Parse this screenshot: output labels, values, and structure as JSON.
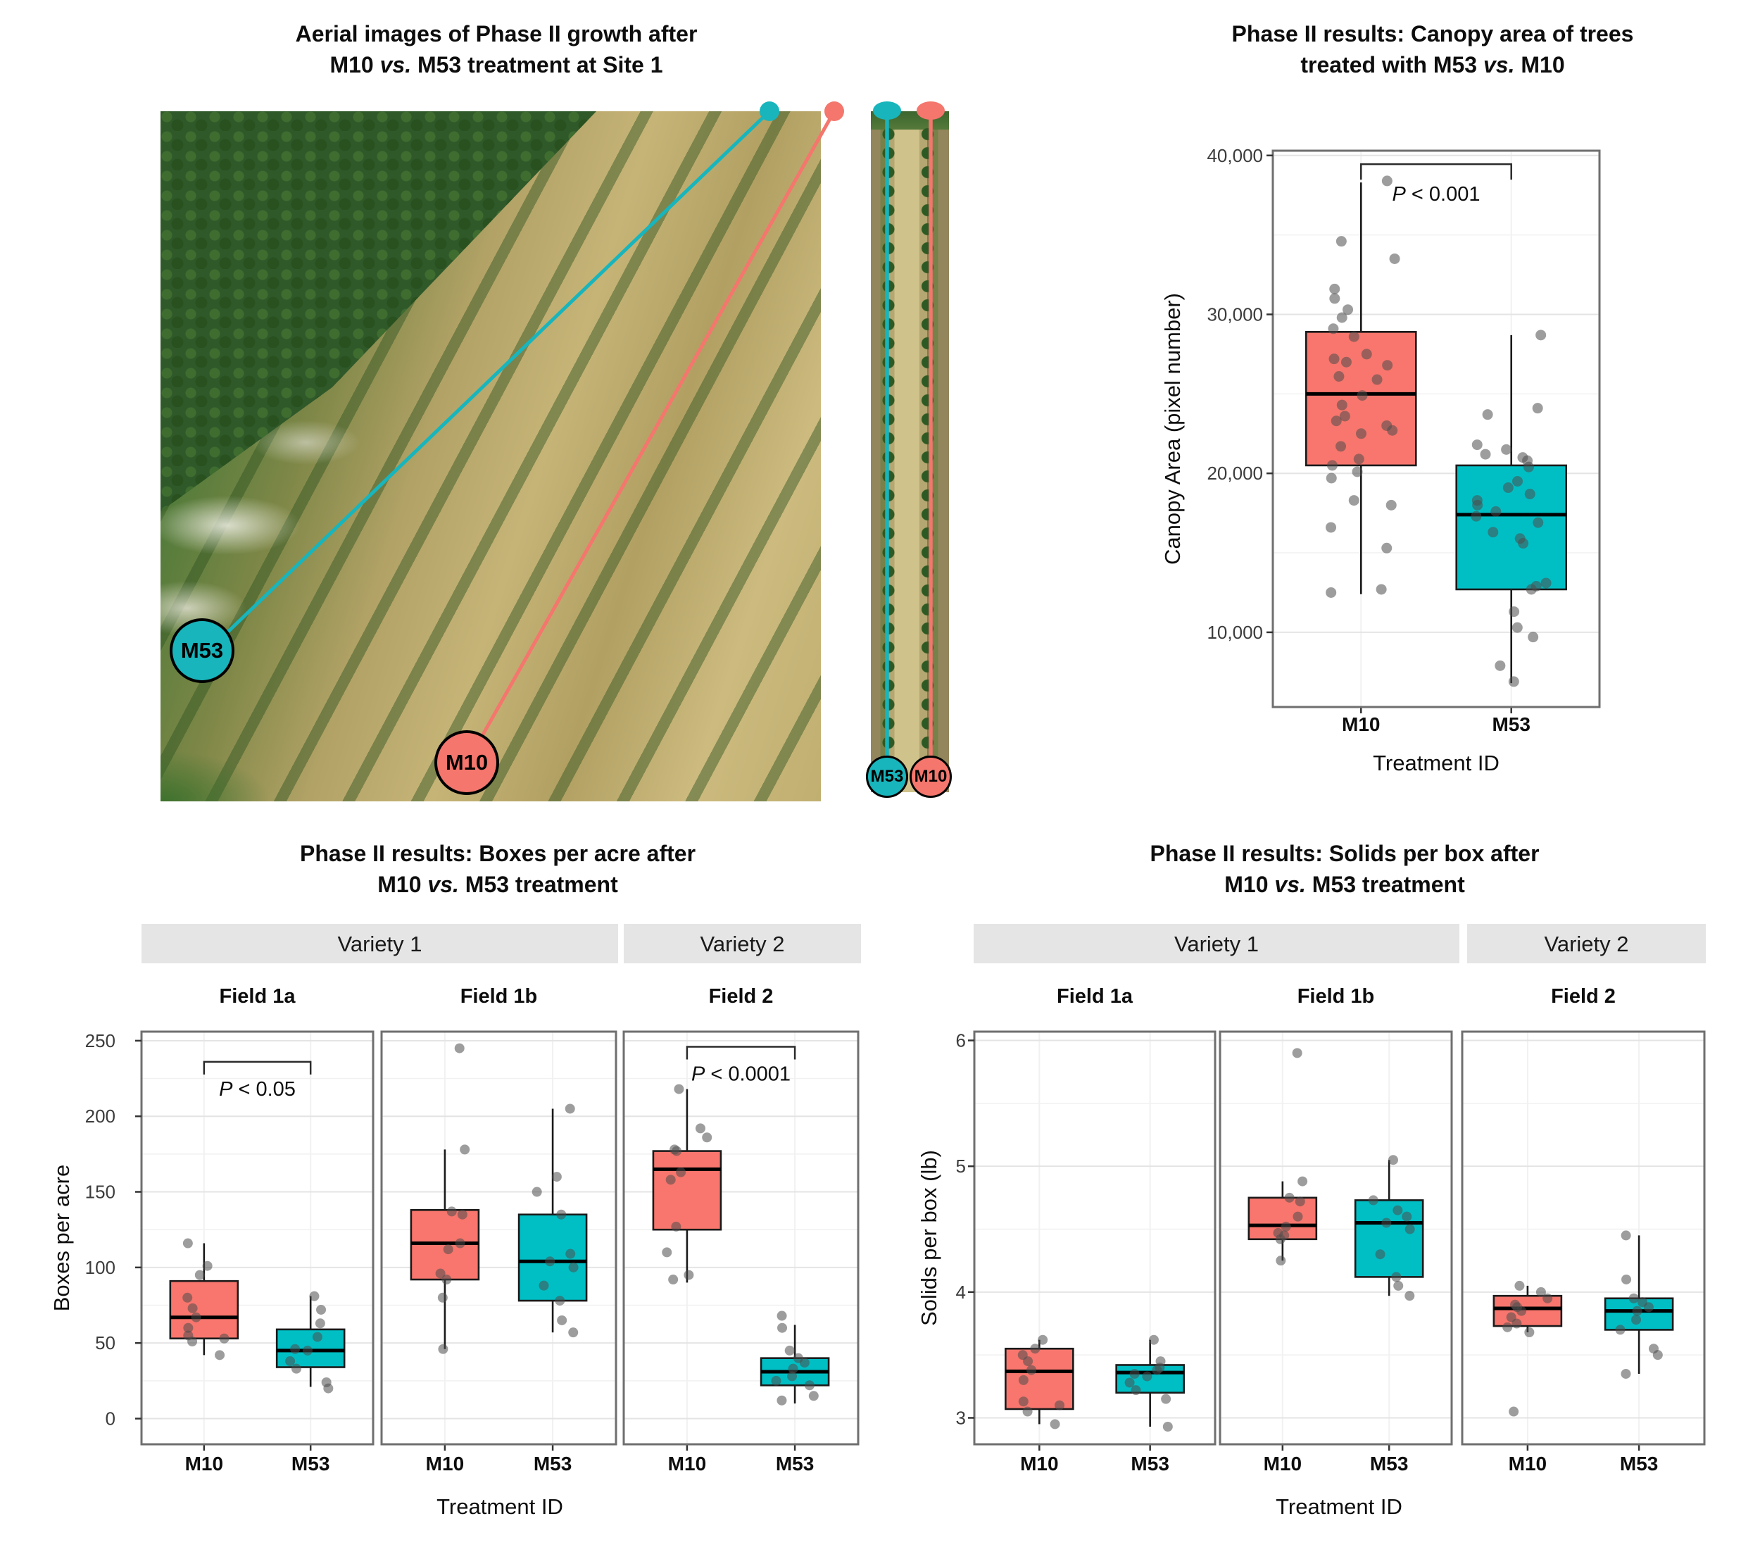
{
  "colors": {
    "m10": "#F8766D",
    "m53": "#00BFC4",
    "points": "#4D4D4D",
    "strip_bg": "#E5E5E5",
    "panel_border": "#6F6F6F",
    "grid_major": "#E4E4E4",
    "grid_minor": "#F1F1F1",
    "annotation_line": "#2B2B2B",
    "marker_teal": "#18B5BC",
    "marker_red": "#F4766D"
  },
  "panel_a": {
    "title_line1": "Aerial images of Phase II growth after",
    "l2_pre": "M10 ",
    "l2_vs": "vs.",
    "l2_post": " M53 treatment at Site 1",
    "marker_m53": "M53",
    "marker_m10": "M10"
  },
  "panel_b": {
    "title_line1": "Phase II results: Canopy area of trees",
    "l2_pre": "treated with M53 ",
    "l2_vs": "vs.",
    "l2_post": " M10"
  },
  "panel_c": {
    "title_line1": "Phase II results: Boxes per acre after",
    "l2_pre": "M10 ",
    "l2_vs": "vs.",
    "l2_post": " M53 treatment"
  },
  "panel_d": {
    "title_line1": "Phase II results: Solids per box after",
    "l2_pre": "M10 ",
    "l2_vs": "vs.",
    "l2_post": " M53 treatment"
  },
  "chart_data": {
    "canopy": {
      "type": "boxplot",
      "title": "Phase II results: Canopy area of trees treated with M53 vs. M10",
      "ylabel": "Canopy Area (pixel number)",
      "xlabel": "Treatment ID",
      "ylim": [
        5300,
        40300
      ],
      "yticks": [
        10000,
        20000,
        30000,
        40000
      ],
      "yminor_step": 5000,
      "comma_format": true,
      "categories": [
        "M10",
        "M53"
      ],
      "strips": [],
      "facets": [
        {
          "label": "",
          "annotation": {
            "p_italic": "P",
            "p_rest": " < 0.001",
            "y": 39450
          },
          "groups": [
            {
              "category": "M10",
              "color_key": "m10",
              "stats": {
                "whisker_low": 12400,
                "q1": 20500,
                "median": 25000,
                "q3": 28900,
                "whisker_high": 38300
              },
              "points": [
                38400,
                34600,
                33500,
                31600,
                31000,
                30300,
                29800,
                29100,
                28600,
                27500,
                27200,
                27000,
                26800,
                26100,
                25900,
                24900,
                24300,
                23600,
                23300,
                23000,
                22700,
                22500,
                21700,
                20900,
                20500,
                20100,
                19700,
                18300,
                18000,
                16600,
                15300,
                12700,
                12500
              ]
            },
            {
              "category": "M53",
              "color_key": "m53",
              "stats": {
                "whisker_low": 6800,
                "q1": 12700,
                "median": 17400,
                "q3": 20500,
                "whisker_high": 28700
              },
              "points": [
                28700,
                24100,
                23700,
                21800,
                21500,
                21200,
                21000,
                20800,
                20400,
                19500,
                19100,
                18700,
                18300,
                18000,
                17600,
                17300,
                16900,
                16300,
                15900,
                15600,
                13100,
                12900,
                12700,
                11300,
                10300,
                9700,
                7900,
                6900
              ]
            }
          ]
        }
      ]
    },
    "boxes": {
      "type": "boxplot",
      "title": "Phase II results: Boxes per acre after M10 vs. M53 treatment",
      "ylabel": "Boxes per acre",
      "xlabel": "Treatment ID",
      "ylim": [
        -17,
        256
      ],
      "yticks": [
        0,
        50,
        100,
        150,
        200,
        250
      ],
      "yminor_step": 25,
      "comma_format": false,
      "categories": [
        "M10",
        "M53"
      ],
      "strips": [
        {
          "label": "Variety 1",
          "facet_span": [
            0,
            1
          ]
        },
        {
          "label": "Variety 2",
          "facet_span": [
            2,
            2
          ]
        }
      ],
      "facets": [
        {
          "label": "Field 1a",
          "annotation": {
            "p_italic": "P",
            "p_rest": " < 0.05",
            "y": 236
          },
          "groups": [
            {
              "category": "M10",
              "color_key": "m10",
              "stats": {
                "whisker_low": 42,
                "q1": 53,
                "median": 67,
                "q3": 91,
                "whisker_high": 116
              },
              "points": [
                42,
                51,
                53,
                55,
                60,
                67,
                73,
                80,
                95,
                101,
                116
              ]
            },
            {
              "category": "M53",
              "color_key": "m53",
              "stats": {
                "whisker_low": 21,
                "q1": 34,
                "median": 45,
                "q3": 59,
                "whisker_high": 81
              },
              "points": [
                20,
                24,
                33,
                38,
                45,
                46,
                54,
                63,
                72,
                81
              ]
            }
          ]
        },
        {
          "label": "Field 1b",
          "annotation": null,
          "groups": [
            {
              "category": "M10",
              "color_key": "m10",
              "stats": {
                "whisker_low": 46,
                "q1": 92,
                "median": 116,
                "q3": 138,
                "whisker_high": 178
              },
              "points": [
                46,
                80,
                92,
                96,
                112,
                116,
                135,
                137,
                178,
                245
              ]
            },
            {
              "category": "M53",
              "color_key": "m53",
              "stats": {
                "whisker_low": 57,
                "q1": 78,
                "median": 104,
                "q3": 135,
                "whisker_high": 205
              },
              "points": [
                57,
                65,
                78,
                88,
                100,
                104,
                109,
                135,
                150,
                160,
                205
              ]
            }
          ]
        },
        {
          "label": "Field 2",
          "annotation": {
            "p_italic": "P",
            "p_rest": " < 0.0001",
            "y": 246
          },
          "groups": [
            {
              "category": "M10",
              "color_key": "m10",
              "stats": {
                "whisker_low": 90,
                "q1": 125,
                "median": 165,
                "q3": 177,
                "whisker_high": 218
              },
              "points": [
                92,
                95,
                110,
                127,
                158,
                163,
                177,
                178,
                186,
                192,
                218
              ]
            },
            {
              "category": "M53",
              "color_key": "m53",
              "stats": {
                "whisker_low": 10,
                "q1": 22,
                "median": 31,
                "q3": 40,
                "whisker_high": 62
              },
              "points": [
                12,
                15,
                22,
                25,
                28,
                33,
                37,
                40,
                45,
                60,
                68
              ]
            }
          ]
        }
      ]
    },
    "solids": {
      "type": "boxplot",
      "title": "Phase II results: Solids per box after M10 vs. M53 treatment",
      "ylabel": "Solids per box (lb)",
      "xlabel": "Treatment ID",
      "ylim": [
        2.79,
        6.07
      ],
      "yticks": [
        3,
        4,
        5,
        6
      ],
      "yminor_step": 0.5,
      "comma_format": false,
      "categories": [
        "M10",
        "M53"
      ],
      "strips": [
        {
          "label": "Variety 1",
          "facet_span": [
            0,
            1
          ]
        },
        {
          "label": "Variety 2",
          "facet_span": [
            2,
            2
          ]
        }
      ],
      "facets": [
        {
          "label": "Field 1a",
          "annotation": null,
          "groups": [
            {
              "category": "M10",
              "color_key": "m10",
              "stats": {
                "whisker_low": 2.95,
                "q1": 3.07,
                "median": 3.37,
                "q3": 3.55,
                "whisker_high": 3.62
              },
              "points": [
                2.95,
                3.05,
                3.1,
                3.13,
                3.3,
                3.38,
                3.45,
                3.5,
                3.55,
                3.62
              ]
            },
            {
              "category": "M53",
              "color_key": "m53",
              "stats": {
                "whisker_low": 2.93,
                "q1": 3.2,
                "median": 3.36,
                "q3": 3.42,
                "whisker_high": 3.62
              },
              "points": [
                2.93,
                3.15,
                3.22,
                3.28,
                3.33,
                3.35,
                3.38,
                3.4,
                3.45,
                3.62
              ]
            }
          ]
        },
        {
          "label": "Field 1b",
          "annotation": null,
          "groups": [
            {
              "category": "M10",
              "color_key": "m10",
              "stats": {
                "whisker_low": 4.25,
                "q1": 4.42,
                "median": 4.53,
                "q3": 4.75,
                "whisker_high": 4.88
              },
              "points": [
                4.25,
                4.42,
                4.45,
                4.47,
                4.52,
                4.6,
                4.72,
                4.75,
                4.88,
                5.9
              ]
            },
            {
              "category": "M53",
              "color_key": "m53",
              "stats": {
                "whisker_low": 3.97,
                "q1": 4.12,
                "median": 4.55,
                "q3": 4.73,
                "whisker_high": 5.05
              },
              "points": [
                3.97,
                4.05,
                4.12,
                4.3,
                4.5,
                4.55,
                4.6,
                4.65,
                4.73,
                5.05
              ]
            }
          ]
        },
        {
          "label": "Field 2",
          "annotation": null,
          "groups": [
            {
              "category": "M10",
              "color_key": "m10",
              "stats": {
                "whisker_low": 3.68,
                "q1": 3.73,
                "median": 3.87,
                "q3": 3.97,
                "whisker_high": 4.05
              },
              "points": [
                3.05,
                3.68,
                3.72,
                3.75,
                3.8,
                3.85,
                3.88,
                3.9,
                3.95,
                4.0,
                4.05
              ]
            },
            {
              "category": "M53",
              "color_key": "m53",
              "stats": {
                "whisker_low": 3.35,
                "q1": 3.7,
                "median": 3.85,
                "q3": 3.95,
                "whisker_high": 4.45
              },
              "points": [
                3.35,
                3.5,
                3.55,
                3.7,
                3.78,
                3.85,
                3.88,
                3.92,
                3.95,
                4.1,
                4.45
              ]
            }
          ]
        }
      ]
    }
  }
}
